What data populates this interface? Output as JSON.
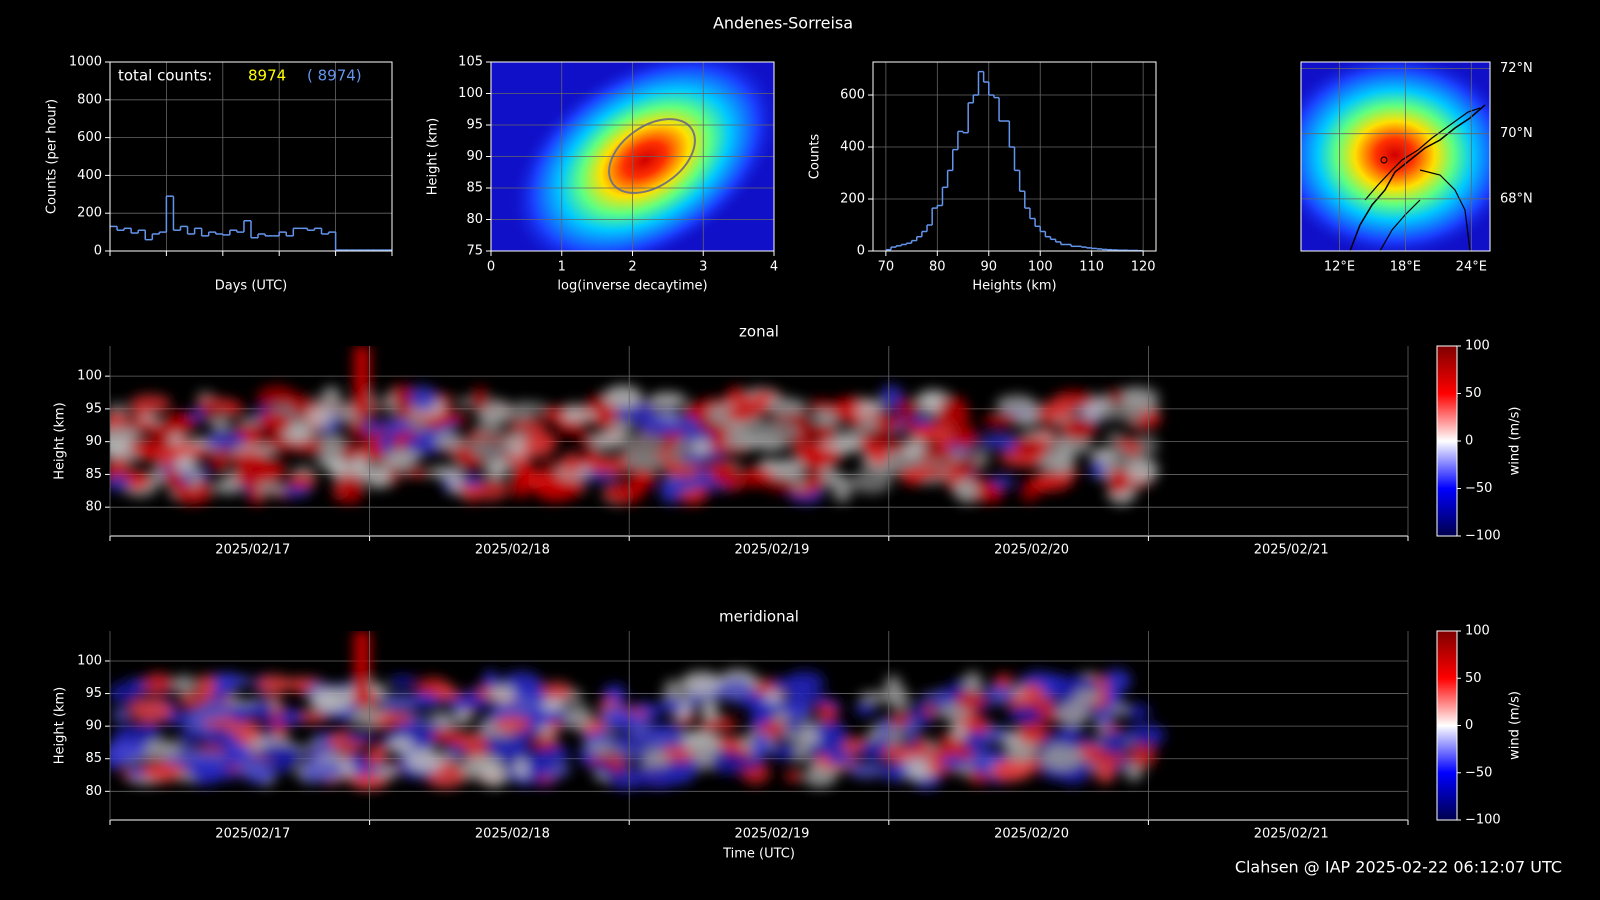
{
  "title": "Andenes-Sorreisa",
  "footer": "Clahsen @ IAP 2025-02-22 06:12:07 UTC",
  "chart_data": [
    {
      "type": "histogram",
      "xlabel": "Days (UTC)",
      "ylabel": "Counts (per hour)",
      "bins": [
        0,
        0.125,
        0.25,
        0.375,
        0.5,
        0.625,
        0.75,
        0.875,
        1,
        1.125,
        1.25,
        1.375,
        1.5,
        1.625,
        1.75,
        1.875,
        2,
        2.125,
        2.25,
        2.375,
        2.5,
        2.625,
        2.75,
        2.875,
        3,
        3.125,
        3.25,
        3.375,
        3.5,
        3.625,
        3.75,
        3.875,
        4,
        4.125,
        4.25,
        4.375,
        4.5,
        4.625,
        4.75,
        4.875,
        5
      ],
      "values": [
        130,
        110,
        120,
        95,
        110,
        60,
        90,
        100,
        290,
        110,
        130,
        90,
        120,
        80,
        100,
        90,
        85,
        110,
        100,
        160,
        70,
        90,
        80,
        80,
        100,
        80,
        120,
        120,
        110,
        120,
        90,
        100,
        5,
        5,
        5,
        5,
        5,
        5,
        5,
        5
      ],
      "color": "#6495ed",
      "xlim": [
        0,
        5
      ],
      "xticks": [
        0,
        1,
        2,
        3,
        4,
        5
      ],
      "xtick_labels": false,
      "ylim": [
        0,
        1000
      ],
      "yticks": [
        0,
        200,
        400,
        600,
        800,
        1000
      ],
      "grid": true,
      "annotations": [
        {
          "text": "total counts:",
          "color": "#ffffff"
        },
        {
          "text": "8974",
          "color": "#ffff00"
        },
        {
          "text": "(  8974)",
          "color": "#6495ed"
        }
      ]
    },
    {
      "type": "density",
      "xlabel": "log(inverse decaytime)",
      "ylabel": "Height (km)",
      "xlim": [
        0,
        4
      ],
      "xticks": [
        0,
        1,
        2,
        3,
        4
      ],
      "ylim": [
        75,
        105
      ],
      "yticks": [
        75,
        80,
        85,
        90,
        95,
        100,
        105
      ],
      "grid": true
    },
    {
      "type": "histogram",
      "xlabel": "Heights (km)",
      "ylabel": "Counts",
      "bins": [
        70,
        71,
        72,
        73,
        74,
        75,
        76,
        77,
        78,
        79,
        80,
        81,
        82,
        83,
        84,
        85,
        86,
        87,
        88,
        89,
        90,
        91,
        92,
        93,
        94,
        95,
        96,
        97,
        98,
        99,
        100,
        101,
        102,
        103,
        104,
        105,
        106,
        107,
        108,
        109,
        110,
        111,
        112,
        113,
        114,
        115,
        116,
        117,
        118,
        119,
        120
      ],
      "values": [
        5,
        15,
        20,
        25,
        30,
        40,
        55,
        75,
        100,
        165,
        175,
        245,
        310,
        390,
        460,
        455,
        570,
        600,
        690,
        650,
        600,
        590,
        500,
        500,
        400,
        310,
        230,
        165,
        125,
        95,
        75,
        55,
        45,
        35,
        25,
        25,
        18,
        18,
        15,
        12,
        10,
        8,
        6,
        5,
        4,
        3,
        3,
        2,
        2,
        1
      ],
      "color": "#6495ed",
      "xlim": [
        67.5,
        122.5
      ],
      "xticks": [
        70,
        80,
        90,
        100,
        110,
        120
      ],
      "ylim": [
        0,
        727
      ],
      "yticks": [
        0,
        200,
        400,
        600
      ],
      "grid": true
    },
    {
      "type": "map",
      "xlim": [
        8.5,
        25.7
      ],
      "xticks": [
        {
          "value": 12,
          "label": "12°E"
        },
        {
          "value": 18,
          "label": "18°E"
        },
        {
          "value": 24,
          "label": "24°E"
        }
      ],
      "ylim": [
        66.4,
        72.2
      ],
      "yticks": [
        {
          "value": 72,
          "label": "72°N"
        },
        {
          "value": 70,
          "label": "70°N"
        },
        {
          "value": 68,
          "label": "68°N"
        }
      ],
      "grid": true
    },
    {
      "type": "heatmap",
      "title": "zonal",
      "ylabel": "Height (km)",
      "categories": [
        "2025/02/17",
        "2025/02/18",
        "2025/02/19",
        "2025/02/20",
        "2025/02/21"
      ],
      "ylim": [
        75.6,
        104.6
      ],
      "yticks": [
        80,
        85,
        90,
        95,
        100
      ],
      "grid": true,
      "colorbar": {
        "label": "wind (m/s)",
        "lim": [
          -100,
          100
        ],
        "ticks": [
          {
            "value": -100,
            "label": "−100"
          },
          {
            "value": -50,
            "label": "−50"
          },
          0,
          50,
          100
        ]
      }
    },
    {
      "type": "heatmap",
      "title": "meridional",
      "ylabel": "Height (km)",
      "xlabel": "Time (UTC)",
      "categories": [
        "2025/02/17",
        "2025/02/18",
        "2025/02/19",
        "2025/02/20",
        "2025/02/21"
      ],
      "ylim": [
        75.6,
        104.6
      ],
      "yticks": [
        80,
        85,
        90,
        95,
        100
      ],
      "grid": true,
      "colorbar": {
        "label": "wind (m/s)",
        "lim": [
          -100,
          100
        ],
        "ticks": [
          {
            "value": -100,
            "label": "−100"
          },
          {
            "value": -50,
            "label": "−50"
          },
          0,
          50,
          100
        ]
      }
    }
  ]
}
